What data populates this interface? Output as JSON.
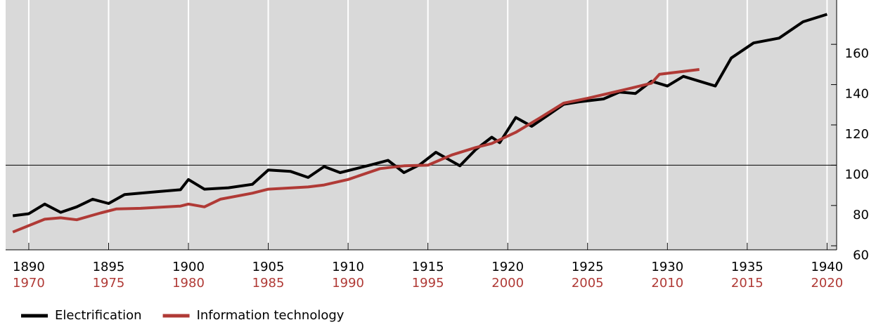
{
  "chart_data": {
    "type": "line",
    "series": [
      {
        "name": "Electrification",
        "color": "#000000",
        "x": [
          1889,
          1890,
          1891,
          1892,
          1893,
          1894,
          1895,
          1896,
          1897,
          1898,
          1899.5,
          1900,
          1901,
          1902.5,
          1904,
          1905,
          1906.4,
          1907.5,
          1908.5,
          1909.5,
          1910.5,
          1911.5,
          1912.5,
          1913.5,
          1914.5,
          1915.5,
          1917,
          1918,
          1919,
          1919.5,
          1920.5,
          1921.5,
          1922.5,
          1923.5,
          1924.5,
          1926,
          1927,
          1928,
          1929,
          1930,
          1931,
          1933,
          1934,
          1935.4,
          1937,
          1938.5,
          1940
        ],
        "values": [
          74.9,
          75.9,
          80.7,
          76.6,
          79.3,
          83.1,
          81.0,
          85.4,
          86.1,
          86.8,
          87.8,
          92.9,
          88.1,
          88.8,
          90.5,
          97.6,
          96.9,
          93.9,
          99.3,
          96.3,
          98.3,
          100.3,
          102.4,
          96.3,
          100.3,
          106.4,
          99.7,
          107.8,
          113.9,
          111.2,
          123.7,
          119.3,
          124.7,
          130.2,
          131.5,
          132.9,
          136.3,
          135.6,
          141.7,
          139.3,
          144.1,
          139.3,
          153.2,
          160.7,
          163.1,
          171.2,
          174.9
        ]
      },
      {
        "name": "Information technology",
        "color": "#b03a36",
        "axis": "x2",
        "x": [
          1969,
          1971,
          1972,
          1973,
          1974.5,
          1975.5,
          1977,
          1979.5,
          1980,
          1981,
          1982,
          1984,
          1985,
          1987.5,
          1988.5,
          1990,
          1992,
          1993.5,
          1995,
          1996.5,
          1998,
          1999,
          2000.5,
          2002,
          2003.5,
          2005,
          2007,
          2009,
          2009.5,
          2012
        ],
        "values": [
          66.8,
          73.2,
          73.9,
          72.9,
          76.3,
          78.3,
          78.6,
          79.7,
          80.7,
          79.3,
          83.1,
          86.1,
          88.1,
          89.2,
          90.2,
          92.9,
          98.3,
          99.7,
          100,
          105.1,
          108.8,
          110.8,
          116.3,
          123.4,
          130.8,
          133.2,
          136.9,
          140.7,
          145.1,
          147.5
        ]
      }
    ],
    "xlim": [
      1888.55,
      1940.6
    ],
    "xticks": [
      1890,
      1895,
      1900,
      1905,
      1910,
      1915,
      1920,
      1925,
      1930,
      1935,
      1940
    ],
    "x2lim": [
      1968.55,
      2020.6
    ],
    "x2ticks": [
      1970,
      1975,
      1980,
      1985,
      1990,
      1995,
      2000,
      2005,
      2010,
      2015,
      2020
    ],
    "x2color": "#b03a36",
    "ylim": [
      58,
      182
    ],
    "yticks": [
      60,
      80,
      100,
      120,
      140,
      160
    ],
    "y_axis_side": "right",
    "reference_line": 100,
    "grid": "x",
    "background": "#d9d9d9",
    "legend": "bottom-left"
  }
}
